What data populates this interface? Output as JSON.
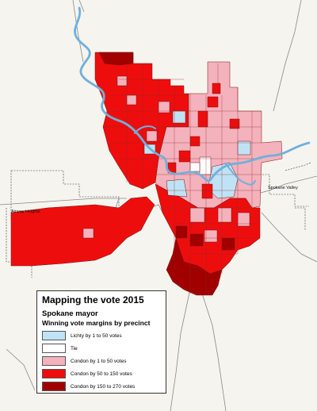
{
  "map": {
    "colors": {
      "background": "#f6f4ee",
      "river": "#6fb0dc",
      "lichty_1_50": "#bfe3f5",
      "tie": "#ffffff",
      "condon_1_50": "#f4b2bc",
      "condon_50_150": "#ee0d0d",
      "condon_150_270": "#a00000"
    },
    "places": {
      "airway_heights": "Airway Heights",
      "spokane_valley": "Spokane Valley"
    }
  },
  "legend": {
    "title": "Mapping the vote 2015",
    "subtitle": "Spokane mayor",
    "subtitle2": "Winning vote margins by precinct",
    "items": [
      {
        "label": "Lichty by 1 to 50 votes",
        "color": "#bfe3f5"
      },
      {
        "label": "Tie",
        "color": "#ffffff"
      },
      {
        "label": "Condon by 1 to 50 votes",
        "color": "#f4b2bc"
      },
      {
        "label": "Condon by 50 to 150 votes",
        "color": "#ee0d0d"
      },
      {
        "label": "Condon by 150 to 270 votes",
        "color": "#a00000"
      }
    ]
  }
}
